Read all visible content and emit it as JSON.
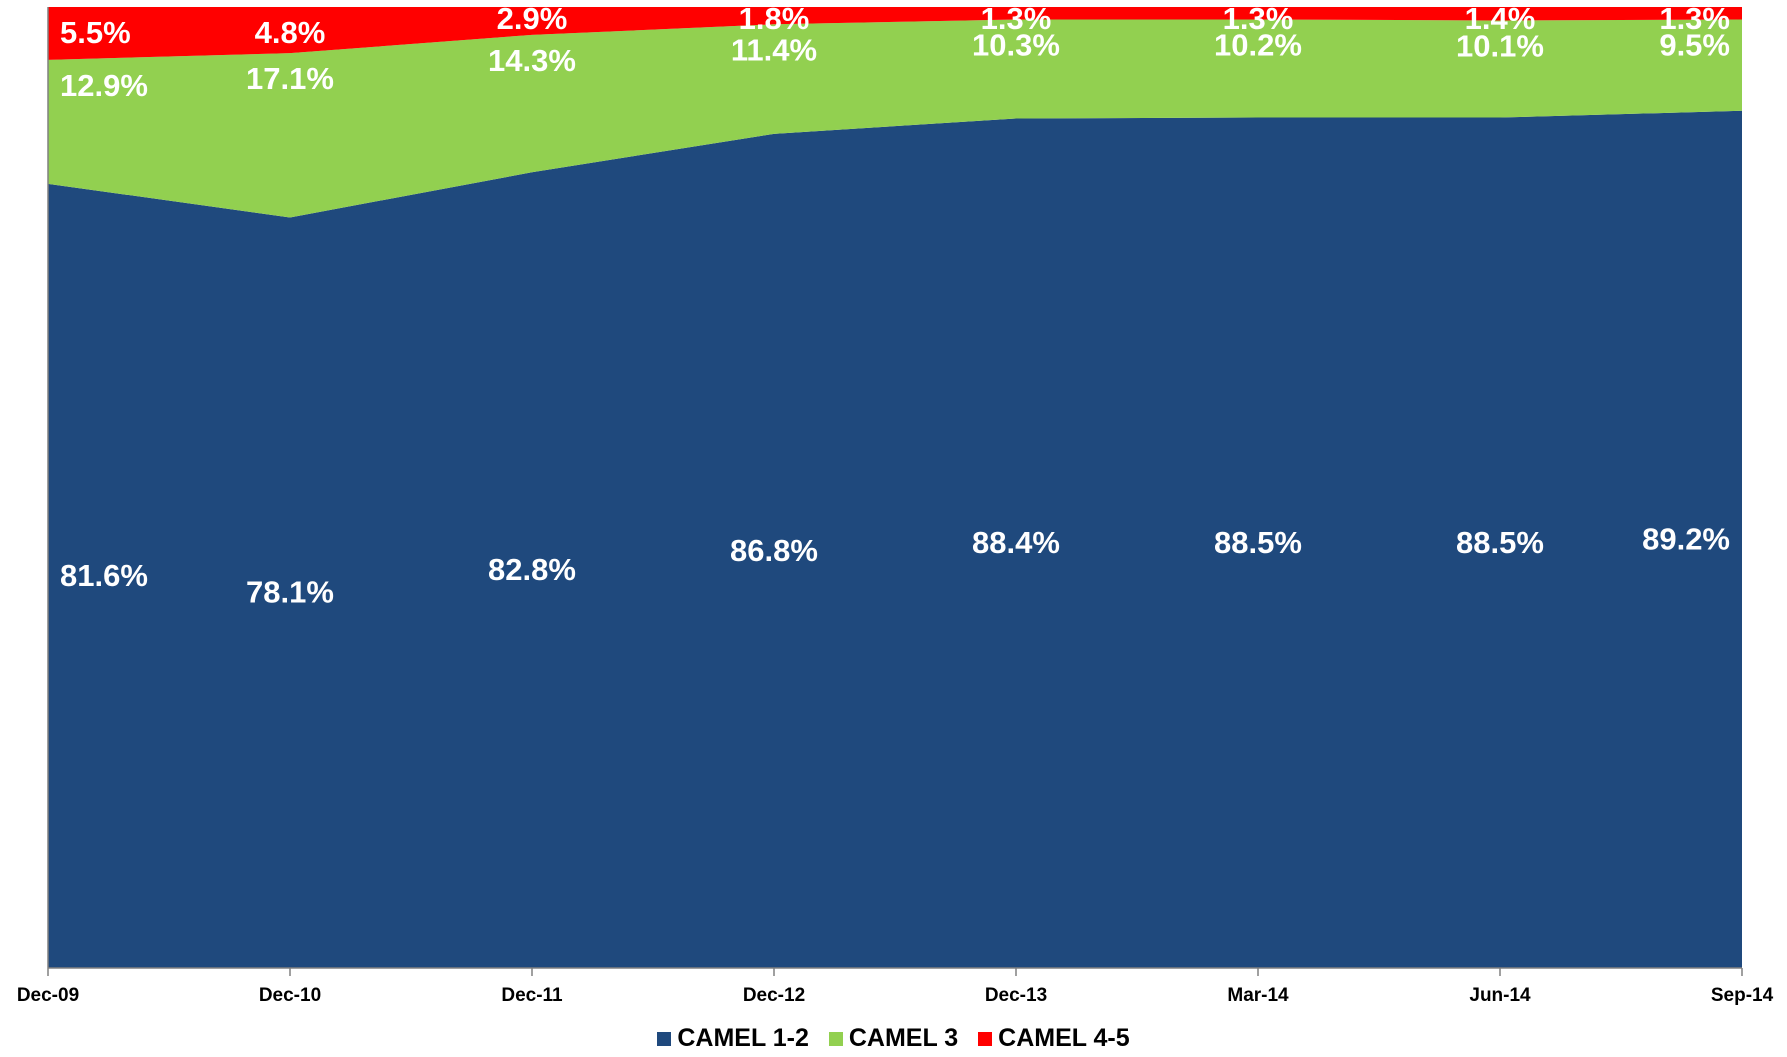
{
  "chart_data": {
    "type": "area",
    "stacked": true,
    "percent_stacked": true,
    "categories": [
      "Dec-09",
      "Dec-10",
      "Dec-11",
      "Dec-12",
      "Dec-13",
      "Mar-14",
      "Jun-14",
      "Sep-14"
    ],
    "series": [
      {
        "name": "CAMEL 1-2",
        "color": "#1f497d",
        "values": [
          81.6,
          78.1,
          82.8,
          86.8,
          88.4,
          88.5,
          88.5,
          89.2
        ],
        "labels": [
          "81.6%",
          "78.1%",
          "82.8%",
          "86.8%",
          "88.4%",
          "88.5%",
          "88.5%",
          "89.2%"
        ]
      },
      {
        "name": "CAMEL 3",
        "color": "#92d050",
        "values": [
          12.9,
          17.1,
          14.3,
          11.4,
          10.3,
          10.2,
          10.1,
          9.5
        ],
        "labels": [
          "12.9%",
          "17.1%",
          "14.3%",
          "11.4%",
          "10.3%",
          "10.2%",
          "10.1%",
          "9.5%"
        ]
      },
      {
        "name": "CAMEL 4-5",
        "color": "#ff0000",
        "values": [
          5.5,
          4.8,
          2.9,
          1.8,
          1.3,
          1.3,
          1.4,
          1.3
        ],
        "labels": [
          "5.5%",
          "4.8%",
          "2.9%",
          "1.8%",
          "1.3%",
          "1.3%",
          "1.4%",
          "1.3%"
        ]
      }
    ],
    "ylim": [
      0,
      100
    ],
    "grid": false,
    "legend_position": "bottom-center",
    "title": "",
    "xlabel": "",
    "ylabel": ""
  }
}
